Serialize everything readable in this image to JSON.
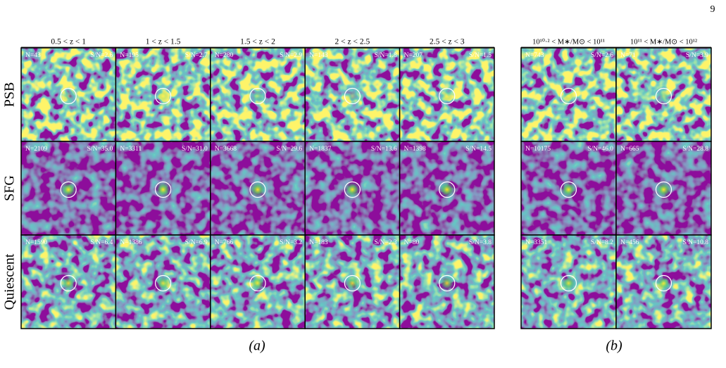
{
  "page_number": "9",
  "row_labels": [
    "PSB",
    "SFG",
    "Quiescent"
  ],
  "groups": [
    {
      "caption": "(a)",
      "columns": [
        "0.5 < z < 1",
        "1 < z < 1.5",
        "1.5 < z < 2",
        "2 < z < 2.5",
        "2.5 < z < 3"
      ],
      "rows": [
        [
          {
            "n": "N=43",
            "sn": "S/N=2.6"
          },
          {
            "n": "N=195",
            "sn": "S/N=2.7"
          },
          {
            "n": "N=280",
            "sn": "S/N=2.9"
          },
          {
            "n": "N=143",
            "sn": "S/N=1.8"
          },
          {
            "n": "N=207",
            "sn": "S/N=1.5"
          }
        ],
        [
          {
            "n": "N=2109",
            "sn": "S/N=35.0"
          },
          {
            "n": "N=3311",
            "sn": "S/N=31.0"
          },
          {
            "n": "N=3668",
            "sn": "S/N=29.6"
          },
          {
            "n": "N=1837",
            "sn": "S/N=13.6"
          },
          {
            "n": "N=1398",
            "sn": "S/N=14.5"
          }
        ],
        [
          {
            "n": "N=1590",
            "sn": "S/N=6.4"
          },
          {
            "n": "N=1386",
            "sn": "S/N=6.9"
          },
          {
            "n": "N=766",
            "sn": "S/N=3.2"
          },
          {
            "n": "N=183",
            "sn": "S/N=2.3"
          },
          {
            "n": "N=80",
            "sn": "S/N=3.8"
          }
        ]
      ]
    },
    {
      "caption": "(b)",
      "columns": [
        "10¹⁰·² < M∗/M⊙ < 10¹¹",
        "10¹¹ < M∗/M⊙ < 10¹²"
      ],
      "rows": [
        [
          {
            "n": "N=743",
            "sn": "S/N=2.6"
          },
          {
            "n": "N=71",
            "sn": "S/N=3.9"
          }
        ],
        [
          {
            "n": "N=10175",
            "sn": "S/N=46.0"
          },
          {
            "n": "N=665",
            "sn": "S/N=28.8"
          }
        ],
        [
          {
            "n": "N=3351",
            "sn": "S/N=8.2"
          },
          {
            "n": "N=456",
            "sn": "S/N=10.8"
          }
        ]
      ]
    }
  ]
}
